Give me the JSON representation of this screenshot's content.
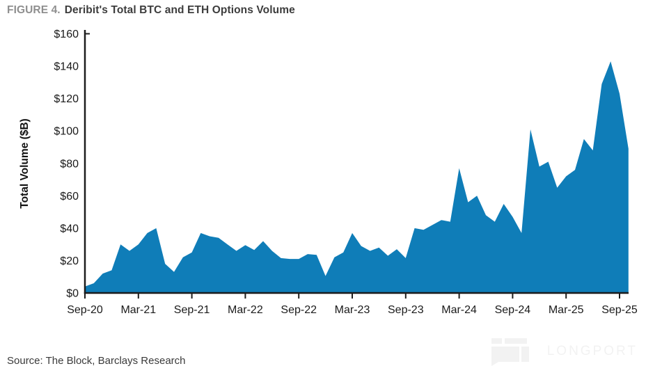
{
  "figure": {
    "label": "FIGURE 4.",
    "title": "Deribit's Total BTC and ETH Options Volume"
  },
  "source_note": "Source: The Block, Barclays Research",
  "watermark": "LONGPORT",
  "colors": {
    "area": "#0f7db8",
    "axis": "#1c1c1c",
    "tick_text": "#1a1a1a",
    "figure_label": "#8f8f8f",
    "figure_title": "#3d3d3d",
    "watermark": "#f2f2f2"
  },
  "chart_data": {
    "type": "area",
    "title": "Deribit's Total BTC and ETH Options Volume",
    "xlabel": "",
    "ylabel": "Total Volume ($B)",
    "ylim": [
      0,
      160
    ],
    "y_tick_step": 20,
    "grid": "off",
    "legend": "none",
    "y_tick_labels": [
      "$0",
      "$20",
      "$40",
      "$60",
      "$80",
      "$100",
      "$120",
      "$140",
      "$160"
    ],
    "x_tick_labels": [
      "Sep-20",
      "Mar-21",
      "Sep-21",
      "Mar-22",
      "Sep-22",
      "Mar-23",
      "Sep-23",
      "Mar-24",
      "Sep-24",
      "Mar-25",
      "Sep-25"
    ],
    "x": [
      "Sep-20",
      "Oct-20",
      "Nov-20",
      "Dec-20",
      "Jan-21",
      "Feb-21",
      "Mar-21",
      "Apr-21",
      "May-21",
      "Jun-21",
      "Jul-21",
      "Aug-21",
      "Sep-21",
      "Oct-21",
      "Nov-21",
      "Dec-21",
      "Jan-22",
      "Feb-22",
      "Mar-22",
      "Apr-22",
      "May-22",
      "Jun-22",
      "Jul-22",
      "Aug-22",
      "Sep-22",
      "Oct-22",
      "Nov-22",
      "Dec-22",
      "Jan-23",
      "Feb-23",
      "Mar-23",
      "Apr-23",
      "May-23",
      "Jun-23",
      "Jul-23",
      "Aug-23",
      "Sep-23",
      "Oct-23",
      "Nov-23",
      "Dec-23",
      "Jan-24",
      "Feb-24",
      "Mar-24",
      "Apr-24",
      "May-24",
      "Jun-24",
      "Jul-24",
      "Aug-24",
      "Sep-24",
      "Oct-24",
      "Nov-24",
      "Dec-24",
      "Jan-25",
      "Feb-25",
      "Mar-25",
      "Apr-25",
      "May-25",
      "Jun-25",
      "Jul-25",
      "Aug-25",
      "Sep-25",
      "Oct-25"
    ],
    "values": [
      4,
      6,
      12,
      14,
      30,
      26,
      30,
      37,
      40,
      18,
      13,
      22,
      25,
      37,
      35,
      34,
      30,
      26,
      29.5,
      26.5,
      32,
      26,
      21.5,
      21,
      21,
      24,
      23.5,
      10.5,
      22,
      25,
      37,
      29,
      26,
      28,
      23,
      27,
      21.5,
      40,
      39,
      42,
      45,
      44,
      77,
      56,
      60,
      48,
      44,
      55,
      47,
      37,
      101,
      78,
      81,
      65,
      72,
      76,
      95,
      88,
      129,
      143,
      123,
      89
    ]
  }
}
